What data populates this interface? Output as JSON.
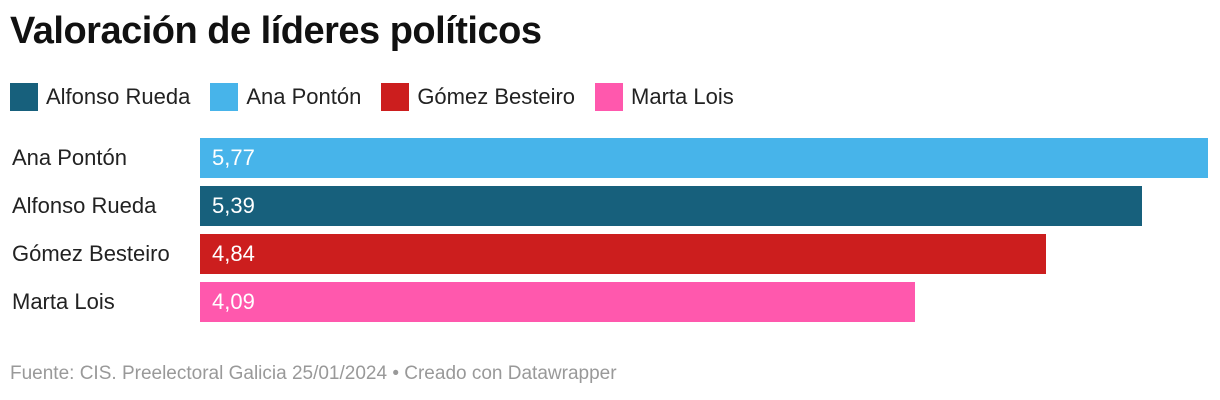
{
  "chart_data": {
    "type": "bar",
    "orientation": "horizontal",
    "title": "Valoración de líderes políticos",
    "categories": [
      "Ana Pontón",
      "Alfonso Rueda",
      "Gómez Besteiro",
      "Marta Lois"
    ],
    "values": [
      5.77,
      5.39,
      4.84,
      4.09
    ],
    "value_labels": [
      "5,77",
      "5,39",
      "4,84",
      "4,09"
    ],
    "colors": [
      "#47b4ea",
      "#17607c",
      "#cc1e1e",
      "#ff58ad"
    ],
    "legend": [
      {
        "label": "Alfonso Rueda",
        "color": "#17607c"
      },
      {
        "label": "Ana Pontón",
        "color": "#47b4ea"
      },
      {
        "label": "Gómez Besteiro",
        "color": "#cc1e1e"
      },
      {
        "label": "Marta Lois",
        "color": "#ff58ad"
      }
    ],
    "legend_position": "top-left",
    "xlim": [
      0,
      5.77
    ]
  },
  "footer": "Fuente: CIS. Preelectoral Galicia 25/01/2024 • Creado con Datawrapper"
}
